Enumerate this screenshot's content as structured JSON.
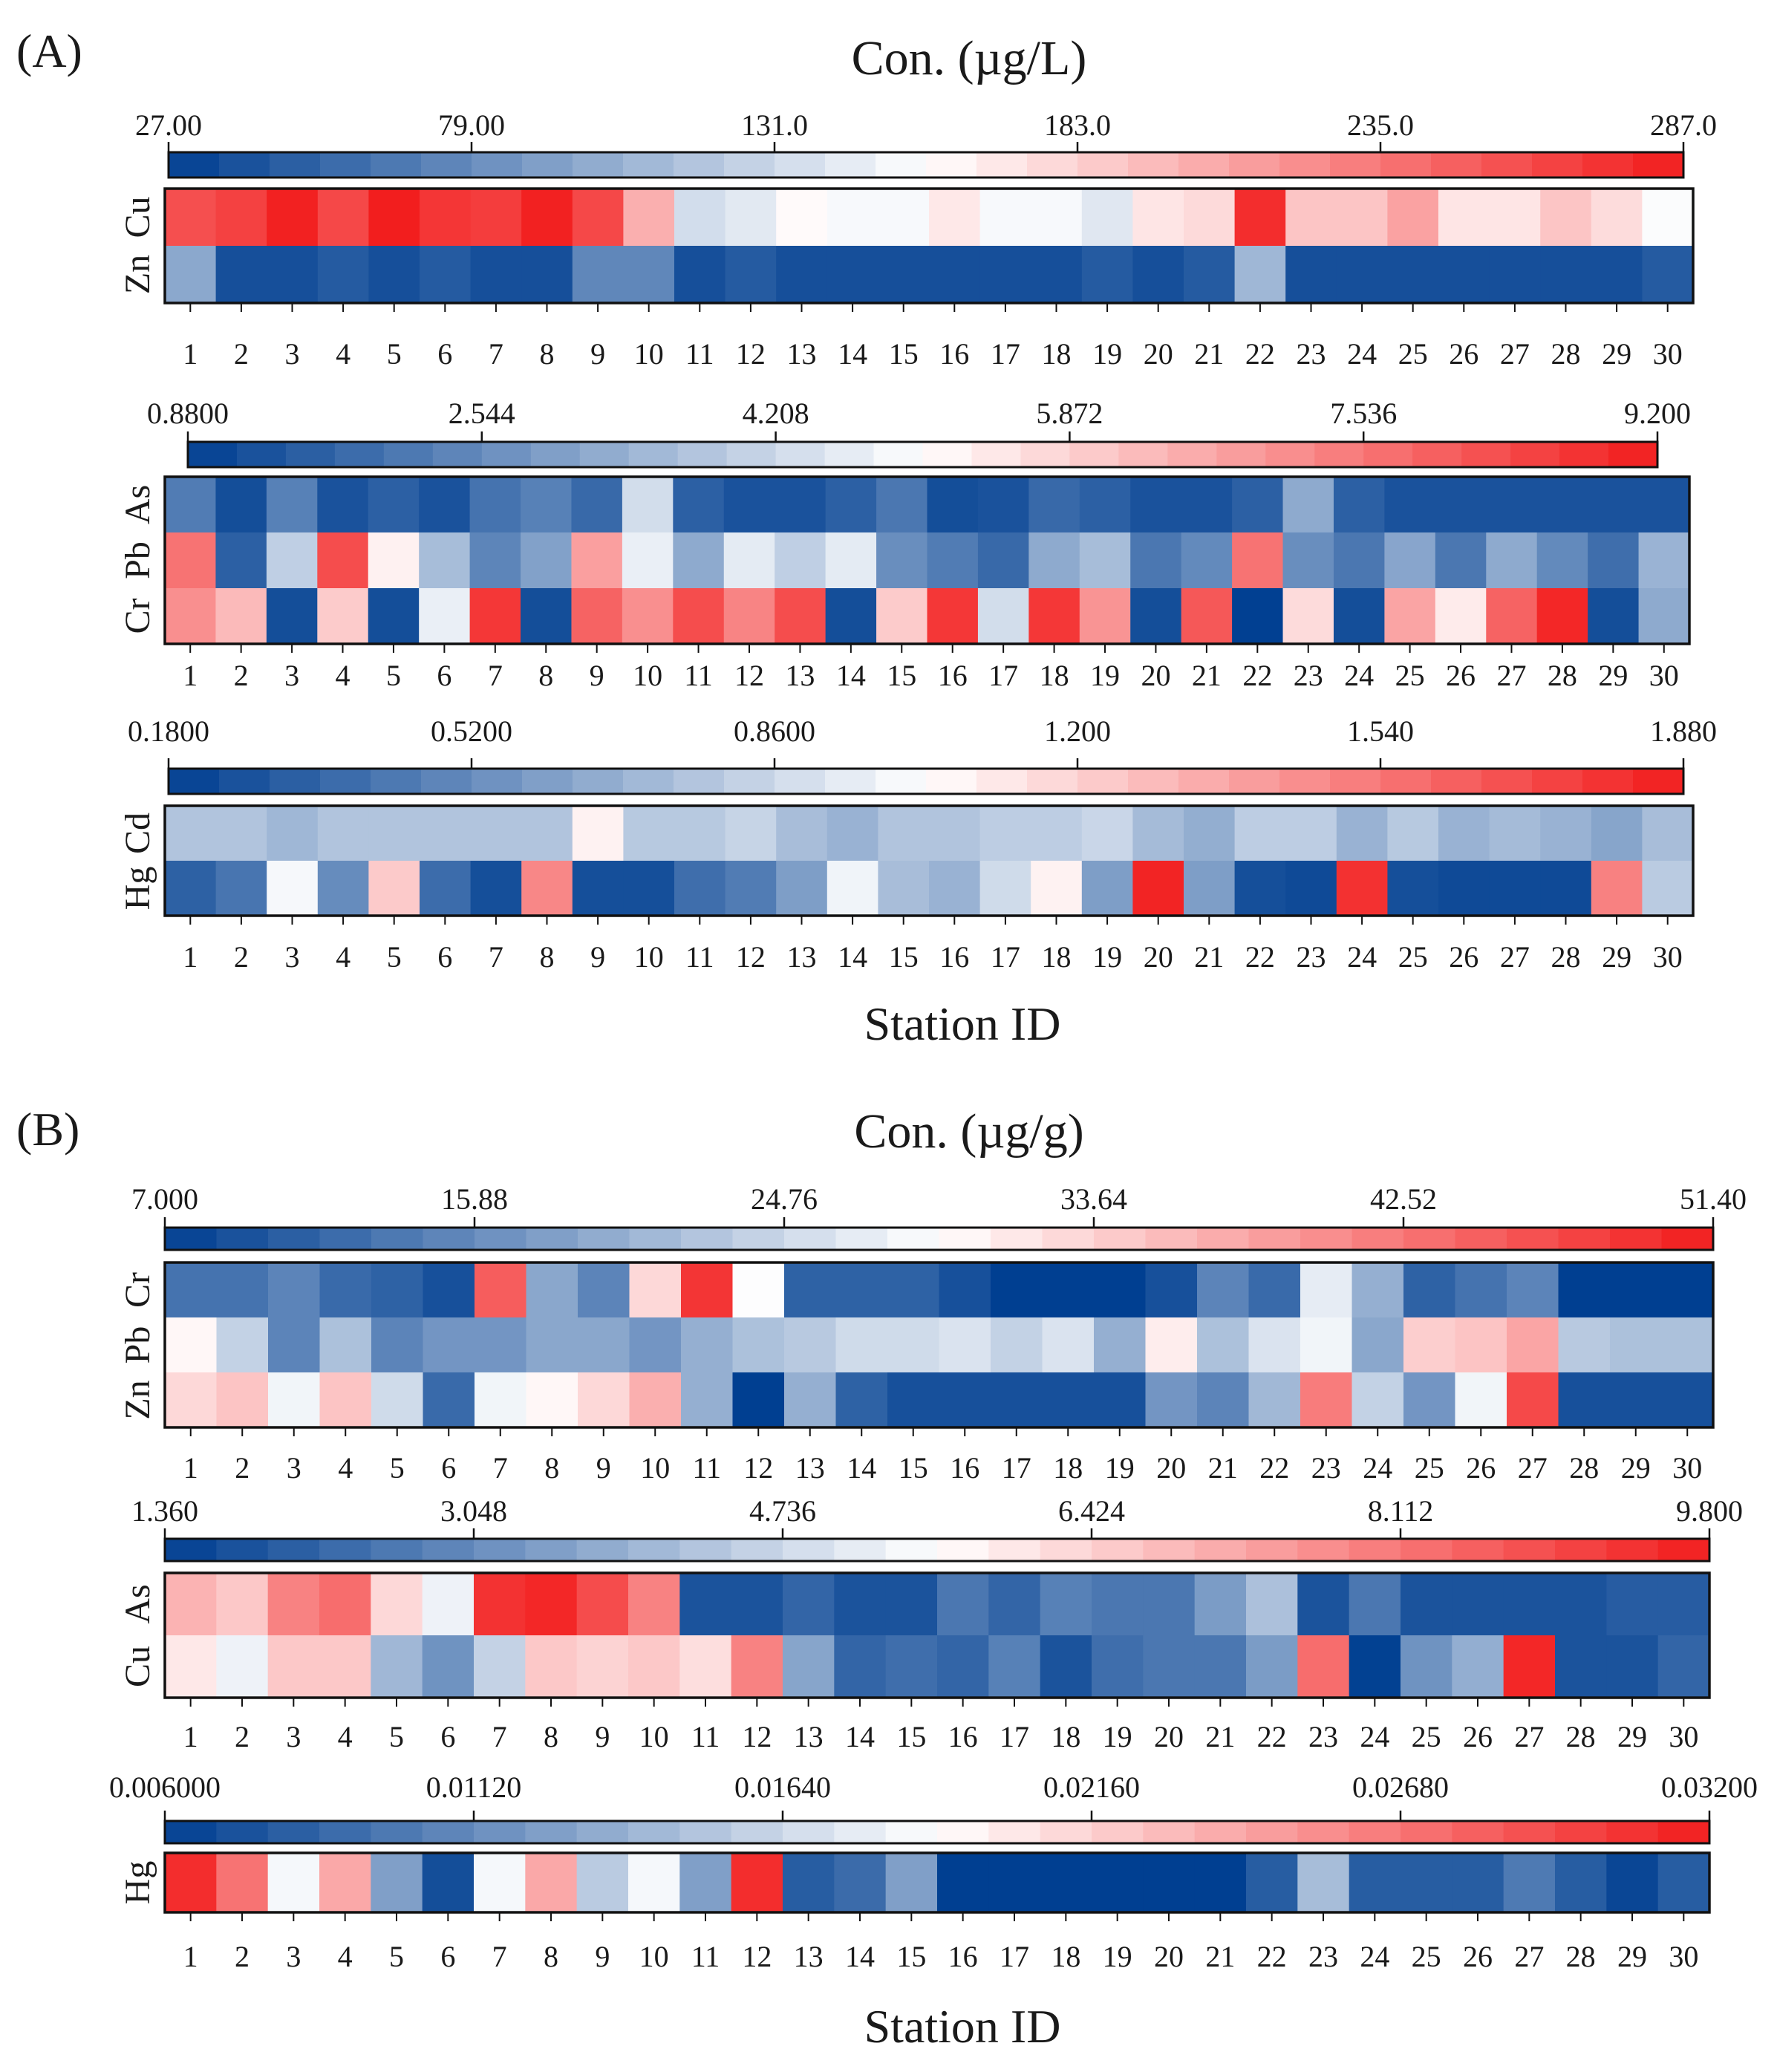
{
  "chart_data": {
    "type": "heatmap",
    "xlabel": "Station ID",
    "stations": [
      1,
      2,
      3,
      4,
      5,
      6,
      7,
      8,
      9,
      10,
      11,
      12,
      13,
      14,
      15,
      16,
      17,
      18,
      19,
      20,
      21,
      22,
      23,
      24,
      25,
      26,
      27,
      28,
      29,
      30
    ],
    "colormap": {
      "low": "#003f91",
      "mid": "#ffffff",
      "high": "#f21c1c"
    },
    "panels": [
      {
        "label": "(A)",
        "unit_title": "Con. (µg/L)",
        "xlabel": "Station ID",
        "groups": [
          {
            "scale": {
              "min": 27,
              "max": 287,
              "ticks": [
                "27.00",
                "79.00",
                "131.0",
                "183.0",
                "235.0",
                "287.0"
              ]
            },
            "rows": [
              {
                "name": "Cu",
                "values": [
                  258,
                  266,
                  284,
                  262,
                  286,
                  272,
                  268,
                  284,
                  262,
                  203,
                  134,
                  142,
                  160,
                  153,
                  153,
                  170,
                  153,
                  153,
                  141,
                  172,
                  178,
                  277,
                  190,
                  190,
                  210,
                  172,
                  172,
                  190,
                  177,
                  155
                ]
              },
              {
                "name": "Zn",
                "values": [
                  98,
                  38,
                  38,
                  46,
                  38,
                  46,
                  38,
                  38,
                  76,
                  76,
                  38,
                  46,
                  38,
                  38,
                  38,
                  38,
                  38,
                  38,
                  46,
                  38,
                  46,
                  108,
                  38,
                  38,
                  38,
                  38,
                  38,
                  38,
                  38,
                  46
                ]
              }
            ]
          },
          {
            "scale": {
              "min": 0.88,
              "max": 9.2,
              "ticks": [
                "0.8800",
                "2.544",
                "4.208",
                "5.872",
                "7.536",
                "9.200"
              ]
            },
            "rows": [
              {
                "name": "As",
                "values": [
                  2.2,
                  1.2,
                  2.3,
                  1.3,
                  1.6,
                  1.3,
                  2.0,
                  2.3,
                  1.8,
                  4.3,
                  1.6,
                  1.3,
                  1.3,
                  1.6,
                  2.1,
                  1.2,
                  1.3,
                  1.8,
                  1.6,
                  1.3,
                  1.3,
                  1.6,
                  3.2,
                  1.6,
                  1.3,
                  1.3,
                  1.3,
                  1.3,
                  1.3,
                  1.3
                ]
              },
              {
                "name": "Pb",
                "values": [
                  7.6,
                  1.6,
                  4.0,
                  8.3,
                  5.3,
                  3.6,
                  2.4,
                  3.0,
                  6.8,
                  4.7,
                  3.2,
                  4.6,
                  4.0,
                  4.6,
                  2.6,
                  2.2,
                  1.8,
                  3.2,
                  3.6,
                  2.1,
                  2.5,
                  7.6,
                  2.6,
                  2.1,
                  3.1,
                  2.1,
                  3.2,
                  2.5,
                  1.9,
                  3.4
                ]
              },
              {
                "name": "Cr",
                "values": [
                  7.1,
                  6.3,
                  1.2,
                  6.0,
                  1.2,
                  4.7,
                  8.7,
                  1.2,
                  7.9,
                  7.1,
                  8.3,
                  7.3,
                  8.3,
                  1.2,
                  6.0,
                  8.7,
                  4.3,
                  8.7,
                  7.0,
                  1.2,
                  8.1,
                  0.9,
                  5.7,
                  1.2,
                  6.7,
                  5.4,
                  7.9,
                  9.0,
                  1.2,
                  3.2
                ]
              }
            ]
          },
          {
            "scale": {
              "min": 0.18,
              "max": 1.88,
              "ticks": [
                "0.1800",
                "0.5200",
                "0.8600",
                "1.200",
                "1.540",
                "1.880"
              ]
            },
            "rows": [
              {
                "name": "Cd",
                "values": [
                  0.77,
                  0.77,
                  0.71,
                  0.77,
                  0.77,
                  0.77,
                  0.77,
                  0.77,
                  1.08,
                  0.79,
                  0.79,
                  0.84,
                  0.74,
                  0.69,
                  0.77,
                  0.77,
                  0.81,
                  0.81,
                  0.85,
                  0.73,
                  0.67,
                  0.81,
                  0.81,
                  0.69,
                  0.79,
                  0.69,
                  0.73,
                  0.69,
                  0.63,
                  0.74
                ]
              },
              {
                "name": "Hg",
                "values": [
                  0.33,
                  0.42,
                  1.0,
                  0.52,
                  1.23,
                  0.38,
                  0.25,
                  1.48,
                  0.25,
                  0.25,
                  0.39,
                  0.45,
                  0.6,
                  0.98,
                  0.74,
                  0.69,
                  0.87,
                  1.08,
                  0.6,
                  1.85,
                  0.6,
                  0.25,
                  0.23,
                  1.8,
                  0.25,
                  0.23,
                  0.23,
                  0.23,
                  1.5,
                  0.8
                ]
              }
            ]
          }
        ]
      },
      {
        "label": "(B)",
        "unit_title": "Con. (µg/g)",
        "xlabel": "Station ID",
        "groups": [
          {
            "scale": {
              "min": 7,
              "max": 51.4,
              "ticks": [
                "7.000",
                "15.88",
                "24.76",
                "33.64",
                "42.52",
                "51.40"
              ]
            },
            "rows": [
              {
                "name": "Cr",
                "values": [
                  13,
                  13,
                  15,
                  12,
                  11,
                  9,
                  45,
                  19,
                  15,
                  33,
                  49,
                  29,
                  11,
                  11,
                  11,
                  9,
                  7,
                  7,
                  7,
                  9,
                  15,
                  12,
                  27,
                  20,
                  11,
                  13,
                  15,
                  7,
                  7,
                  7
                ]
              },
              {
                "name": "Pb",
                "values": [
                  30,
                  24,
                  15,
                  22,
                  15,
                  17,
                  17,
                  19,
                  19,
                  17,
                  20,
                  22,
                  23,
                  25,
                  25,
                  26,
                  24,
                  26,
                  20,
                  31,
                  22,
                  26,
                  28,
                  19,
                  34,
                  35,
                  38,
                  23,
                  22,
                  22
                ]
              },
              {
                "name": "Zn",
                "values": [
                  33,
                  35,
                  28,
                  35,
                  25,
                  12,
                  28,
                  30,
                  33,
                  37,
                  20,
                  7,
                  20,
                  11,
                  9,
                  9,
                  9,
                  9,
                  9,
                  17,
                  15,
                  21,
                  42,
                  24,
                  17,
                  28,
                  47,
                  9,
                  9,
                  9
                ]
              }
            ]
          },
          {
            "scale": {
              "min": 1.36,
              "max": 9.8,
              "ticks": [
                "1.360",
                "3.048",
                "4.736",
                "6.424",
                "8.112",
                "9.800"
              ]
            },
            "rows": [
              {
                "name": "As",
                "values": [
                  7.0,
                  6.6,
                  7.9,
                  8.3,
                  6.3,
                  5.3,
                  9.4,
                  9.6,
                  8.9,
                  7.9,
                  1.8,
                  1.8,
                  2.2,
                  1.8,
                  1.8,
                  2.6,
                  2.2,
                  2.8,
                  2.6,
                  2.6,
                  3.4,
                  4.2,
                  1.8,
                  2.6,
                  1.8,
                  1.8,
                  1.8,
                  1.8,
                  2.0,
                  2.0
                ]
              },
              {
                "name": "Cu",
                "values": [
                  6.0,
                  5.3,
                  6.6,
                  6.6,
                  4.0,
                  3.2,
                  4.6,
                  6.6,
                  6.4,
                  6.6,
                  6.2,
                  7.9,
                  3.6,
                  2.2,
                  2.4,
                  2.2,
                  2.8,
                  1.8,
                  2.4,
                  2.6,
                  2.6,
                  3.4,
                  8.3,
                  1.4,
                  3.2,
                  3.8,
                  9.6,
                  1.8,
                  1.8,
                  2.2
                ]
              }
            ]
          },
          {
            "scale": {
              "min": 0.006,
              "max": 0.032,
              "ticks": [
                "0.006000",
                "0.01120",
                "0.01640",
                "0.02160",
                "0.02680",
                "0.03200"
              ]
            },
            "rows": [
              {
                "name": "Hg",
                "values": [
                  0.031,
                  0.027,
                  0.0185,
                  0.024,
                  0.0125,
                  0.007,
                  0.0185,
                  0.024,
                  0.0155,
                  0.0185,
                  0.0125,
                  0.031,
                  0.008,
                  0.009,
                  0.0125,
                  0.006,
                  0.006,
                  0.006,
                  0.006,
                  0.006,
                  0.006,
                  0.008,
                  0.0145,
                  0.008,
                  0.008,
                  0.008,
                  0.01,
                  0.008,
                  0.0065,
                  0.008
                ]
              }
            ]
          }
        ]
      }
    ]
  }
}
